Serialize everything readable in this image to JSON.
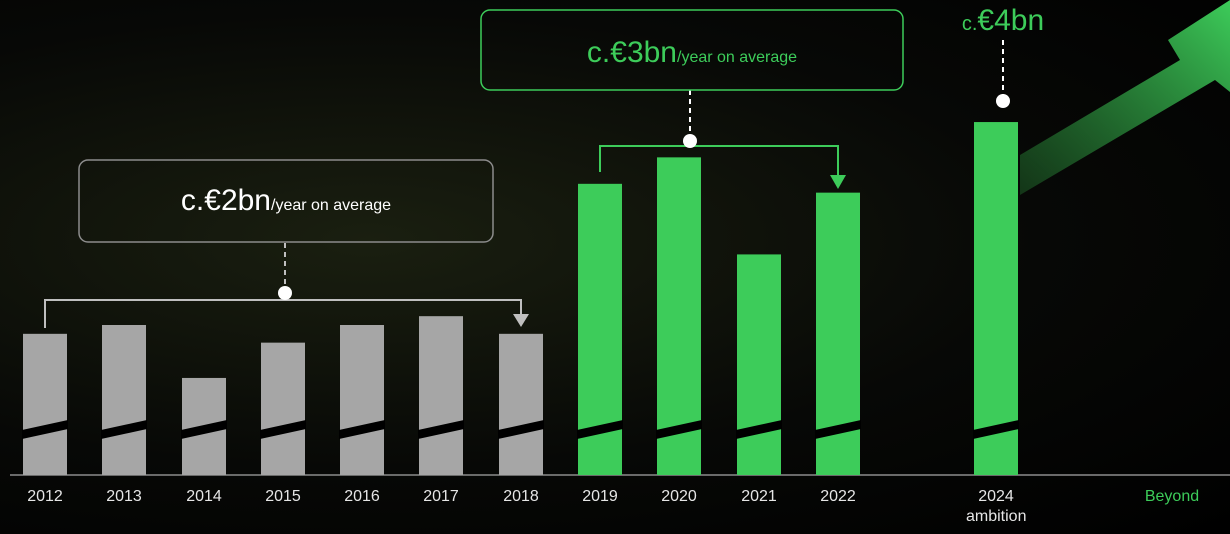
{
  "chart_data": {
    "type": "bar",
    "categories": [
      "2012",
      "2013",
      "2014",
      "2015",
      "2016",
      "2017",
      "2018",
      "2019",
      "2020",
      "2021",
      "2022",
      "2024 ambition"
    ],
    "values": [
      1.6,
      1.7,
      1.1,
      1.5,
      1.7,
      1.8,
      1.6,
      3.3,
      3.6,
      2.5,
      3.2,
      4.0
    ],
    "colors": [
      "#a6a6a6",
      "#a6a6a6",
      "#a6a6a6",
      "#a6a6a6",
      "#a6a6a6",
      "#a6a6a6",
      "#a6a6a6",
      "#3dcc5a",
      "#3dcc5a",
      "#3dcc5a",
      "#3dcc5a",
      "#3dcc5a"
    ],
    "ylim": [
      0,
      4.25
    ],
    "annotations": [
      {
        "main": "c.€2bn",
        "sub": "/year on average"
      },
      {
        "main": "c.€3bn",
        "sub": "/year on average"
      },
      {
        "prefix": "c.",
        "main": "€4bn"
      }
    ],
    "beyond_label": "Beyond"
  }
}
